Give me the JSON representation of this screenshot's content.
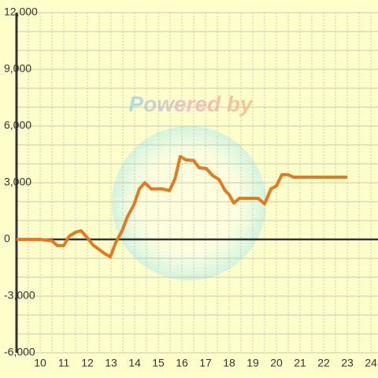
{
  "chart_data": {
    "type": "line",
    "watermark": "Powered by",
    "x": [
      9.0,
      10.0,
      10.5,
      10.73,
      11.0,
      11.23,
      11.5,
      11.73,
      12.0,
      12.23,
      12.5,
      12.73,
      12.97,
      13.2,
      13.47,
      13.7,
      13.97,
      14.2,
      14.43,
      14.7,
      15.17,
      15.47,
      15.7,
      15.93,
      16.17,
      16.5,
      16.73,
      17.03,
      17.3,
      17.57,
      17.83,
      18.0,
      18.2,
      18.43,
      18.97,
      19.23,
      19.5,
      19.77,
      20.0,
      20.23,
      20.5,
      20.73,
      23.0
    ],
    "series": [
      {
        "color": "#e07b22",
        "values": [
          0,
          0,
          -80,
          -330,
          -330,
          170,
          375,
          460,
          80,
          -290,
          -540,
          -750,
          -920,
          -170,
          460,
          1210,
          1830,
          2670,
          3000,
          2670,
          2670,
          2580,
          3170,
          4380,
          4210,
          4170,
          3790,
          3750,
          3380,
          3170,
          2580,
          2370,
          1920,
          2170,
          2170,
          2170,
          1880,
          2670,
          2830,
          3420,
          3420,
          3290,
          3290
        ]
      }
    ],
    "xlim": [
      9,
      24.3
    ],
    "xticks": [
      10,
      11,
      12,
      13,
      14,
      15,
      16,
      17,
      18,
      19,
      20,
      21,
      22,
      23,
      24
    ],
    "minor_xticks": [
      9.5,
      10.5,
      11.5,
      12.5,
      13.5,
      14.5,
      15.5,
      16.5,
      17.5,
      18.5,
      19.5,
      20.5,
      21.5,
      22.5,
      23.5
    ],
    "ylim": [
      -6000,
      12000
    ],
    "yticks": [
      {
        "value": -6000,
        "label": "-6,000"
      },
      {
        "value": -3000,
        "label": "-3,000"
      },
      0,
      {
        "value": 3000,
        "label": "3,000"
      },
      {
        "value": 6000,
        "label": "6,000"
      },
      {
        "value": 9000,
        "label": "9,000"
      },
      {
        "value": 12000,
        "label": "12,000"
      }
    ],
    "minor_yticks": [
      -5000,
      -4000,
      -2000,
      -1000,
      1000,
      2000,
      4000,
      5000,
      7000,
      8000,
      10000,
      11000
    ],
    "grid": true
  }
}
